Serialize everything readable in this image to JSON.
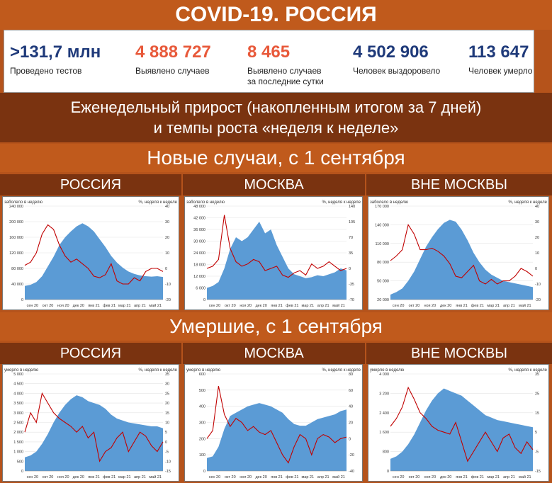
{
  "header": {
    "title": "COVID-19. РОССИЯ"
  },
  "stats": [
    {
      "value": ">131,7 млн",
      "label": "Проведено тестов",
      "color": "#1f3a7a"
    },
    {
      "value": "4 888 727",
      "label": "Выявлено случаев",
      "color": "#e8593a"
    },
    {
      "value": "8 465",
      "label": "Выявлено случаев за последние сутки",
      "label1": "Выявлено случаев",
      "label2": "за последние сутки",
      "color": "#e8593a"
    },
    {
      "value": "4 502 906",
      "label": "Человек выздоровело",
      "color": "#1f3a7a"
    },
    {
      "value": "113 647",
      "label": "Человек умерло",
      "color": "#1f3a7a"
    }
  ],
  "subtitle": {
    "line1": "Еженедельный прирост (накопленным итогом за 7 дней)",
    "line2": "и темпы роста «неделя к неделе»"
  },
  "sections": [
    {
      "title": "Новые случаи, с 1 сентября",
      "regions": [
        "РОССИЯ",
        "МОСКВА",
        "ВНЕ МОСКВЫ"
      ]
    },
    {
      "title": "Умершие, с 1 сентября",
      "regions": [
        "РОССИЯ",
        "МОСКВА",
        "ВНЕ МОСКВЫ"
      ]
    }
  ],
  "colors": {
    "area": "#5b9bd5",
    "line": "#c00000",
    "band_dark": "#7a3310",
    "band_light": "#c05a1c"
  },
  "chart_data": [
    {
      "type": "area",
      "region": "РОССИЯ",
      "section": "Новые случаи, с 1 сентября",
      "y_label_left": "заболело в неделю",
      "y_label_right": "%, неделя к неделе",
      "y_ticks_left": [
        "0",
        "40 000",
        "80 000",
        "120 000",
        "160 000",
        "200 000",
        "240 000"
      ],
      "y_ticks_right": [
        "-20",
        "-10",
        "0",
        "10",
        "20",
        "30",
        "40"
      ],
      "x_ticks": [
        "сен 20",
        "окт 20",
        "ноя 20",
        "дек 20",
        "янв 21",
        "фев 21",
        "мар 21",
        "апр 21",
        "май 21"
      ],
      "ylim_left": [
        0,
        240000
      ],
      "ylim_right": [
        -20,
        40
      ],
      "area_values": [
        35000,
        38000,
        45000,
        60000,
        85000,
        110000,
        140000,
        160000,
        175000,
        188000,
        196000,
        188000,
        175000,
        155000,
        135000,
        112000,
        95000,
        82000,
        72000,
        66000,
        62000,
        60000,
        59000,
        60000,
        58000
      ],
      "line_values": [
        2,
        4,
        10,
        22,
        28,
        25,
        15,
        8,
        4,
        6,
        3,
        0,
        -5,
        -6,
        -4,
        3,
        -8,
        -10,
        -10,
        -6,
        -8,
        -2,
        0,
        0,
        -2
      ]
    },
    {
      "type": "area",
      "region": "МОСКВА",
      "section": "Новые случаи, с 1 сентября",
      "y_label_left": "заболело в неделю",
      "y_label_right": "%, неделя к неделе",
      "y_ticks_left": [
        "0",
        "6 000",
        "12 000",
        "18 000",
        "24 000",
        "30 000",
        "36 000",
        "42 000",
        "48 000"
      ],
      "y_ticks_right": [
        "-70",
        "-35",
        "0",
        "35",
        "70",
        "105",
        "140"
      ],
      "x_ticks": [
        "сен 20",
        "окт 20",
        "ноя 20",
        "дек 20",
        "янв 21",
        "фев 21",
        "мар 21",
        "апр 21",
        "май 21"
      ],
      "ylim_left": [
        0,
        48000
      ],
      "ylim_right": [
        -70,
        140
      ],
      "area_values": [
        6000,
        7000,
        9000,
        16000,
        26000,
        32000,
        30000,
        32000,
        36000,
        40000,
        34000,
        36000,
        28000,
        22000,
        16000,
        13000,
        12000,
        11000,
        11500,
        12500,
        12000,
        13000,
        14000,
        16000,
        15000
      ],
      "line_values": [
        0,
        5,
        20,
        120,
        45,
        15,
        5,
        10,
        20,
        15,
        -5,
        0,
        5,
        -15,
        -20,
        -10,
        -5,
        -15,
        10,
        0,
        5,
        15,
        5,
        -5,
        0
      ]
    },
    {
      "type": "area",
      "region": "ВНЕ МОСКВЫ",
      "section": "Новые случаи, с 1 сентября",
      "y_label_left": "заболело в неделю",
      "y_label_right": "%, неделя к неделе",
      "y_ticks_left": [
        "20 000",
        "50 000",
        "80 000",
        "110 000",
        "140 000",
        "170 000"
      ],
      "y_ticks_right": [
        "-20",
        "-10",
        "0",
        "10",
        "20",
        "30",
        "40"
      ],
      "x_ticks": [
        "сен 20",
        "окт 20",
        "ноя 20",
        "дек 20",
        "янв 21",
        "фев 21",
        "мар 21",
        "апр 21",
        "май 21"
      ],
      "ylim_left": [
        20000,
        170000
      ],
      "ylim_right": [
        -20,
        40
      ],
      "area_values": [
        28000,
        32000,
        38000,
        50000,
        65000,
        85000,
        105000,
        120000,
        133000,
        143000,
        148000,
        145000,
        132000,
        115000,
        95000,
        80000,
        68000,
        60000,
        55000,
        50000,
        48000,
        46000,
        44000,
        42000,
        40000
      ],
      "line_values": [
        5,
        8,
        12,
        28,
        22,
        12,
        12,
        13,
        11,
        8,
        3,
        -5,
        -6,
        -2,
        2,
        -8,
        -10,
        -7,
        -10,
        -8,
        -8,
        -5,
        0,
        -2,
        -5
      ]
    },
    {
      "type": "area",
      "region": "РОССИЯ",
      "section": "Умершие, с 1 сентября",
      "y_label_left": "умерло в неделю",
      "y_label_right": "%, неделя к неделе",
      "y_ticks_left": [
        "0",
        "500",
        "1 000",
        "1 500",
        "2 000",
        "2 500",
        "3 000",
        "3 500",
        "4 000",
        "4 500",
        "5 000"
      ],
      "y_ticks_right": [
        "-15",
        "-10",
        "-5",
        "0",
        "5",
        "10",
        "15",
        "20",
        "25",
        "30",
        "35"
      ],
      "x_ticks": [
        "сен 20",
        "окт 20",
        "ноя 20",
        "дек 20",
        "янв 21",
        "фев 21",
        "мар 21",
        "апр 21",
        "май 21"
      ],
      "ylim_left": [
        0,
        5000
      ],
      "ylim_right": [
        -15,
        35
      ],
      "area_values": [
        700,
        800,
        1000,
        1400,
        1900,
        2500,
        3000,
        3400,
        3700,
        3900,
        3800,
        3600,
        3500,
        3400,
        3200,
        2900,
        2700,
        2600,
        2500,
        2450,
        2400,
        2350,
        2300,
        2300,
        2200
      ],
      "line_values": [
        5,
        15,
        10,
        25,
        20,
        15,
        12,
        10,
        8,
        5,
        8,
        2,
        5,
        -10,
        -5,
        -3,
        2,
        5,
        -5,
        0,
        5,
        3,
        -2,
        -5,
        0
      ]
    },
    {
      "type": "area",
      "region": "МОСКВА",
      "section": "Умершие, с 1 сентября",
      "y_label_left": "умерло в неделю",
      "y_label_right": "%, неделя к неделе",
      "y_ticks_left": [
        "0",
        "100",
        "200",
        "300",
        "400",
        "500",
        "600"
      ],
      "y_ticks_right": [
        "-40",
        "-20",
        "0",
        "20",
        "40",
        "60",
        "80"
      ],
      "x_ticks": [
        "сен 20",
        "окт 20",
        "ноя 20",
        "дек 20",
        "янв 21",
        "фев 21",
        "мар 21",
        "апр 21",
        "май 21"
      ],
      "ylim_left": [
        0,
        600
      ],
      "ylim_right": [
        -40,
        80
      ],
      "area_values": [
        80,
        90,
        150,
        260,
        340,
        360,
        380,
        400,
        410,
        420,
        410,
        400,
        380,
        360,
        320,
        290,
        280,
        280,
        300,
        320,
        330,
        340,
        350,
        370,
        380
      ],
      "line_values": [
        0,
        10,
        65,
        30,
        15,
        25,
        20,
        10,
        15,
        8,
        5,
        10,
        -5,
        -20,
        -30,
        -10,
        5,
        0,
        -20,
        0,
        5,
        2,
        -5,
        0,
        2
      ]
    },
    {
      "type": "area",
      "region": "ВНЕ МОСКВЫ",
      "section": "Умершие, с 1 сентября",
      "y_label_left": "умерло в неделю",
      "y_label_right": "%, неделя к неделе",
      "y_ticks_left": [
        "0",
        "800",
        "1 600",
        "2 400",
        "3 200",
        "4 000"
      ],
      "y_ticks_right": [
        "-15",
        "-5",
        "5",
        "15",
        "25",
        "35"
      ],
      "x_ticks": [
        "сен 20",
        "окт 20",
        "ноя 20",
        "дек 20",
        "янв 21",
        "фев 21",
        "мар 21",
        "апр 21",
        "май 21"
      ],
      "ylim_left": [
        0,
        4000
      ],
      "ylim_right": [
        -15,
        35
      ],
      "area_values": [
        500,
        600,
        800,
        1100,
        1500,
        2000,
        2500,
        2900,
        3200,
        3400,
        3300,
        3200,
        3100,
        2900,
        2700,
        2500,
        2300,
        2200,
        2100,
        2050,
        2000,
        1950,
        1900,
        1850,
        1800
      ],
      "line_values": [
        8,
        12,
        18,
        28,
        22,
        15,
        12,
        8,
        6,
        5,
        4,
        10,
        0,
        -10,
        -5,
        0,
        5,
        0,
        -5,
        2,
        4,
        -3,
        -6,
        0,
        -4
      ]
    }
  ]
}
